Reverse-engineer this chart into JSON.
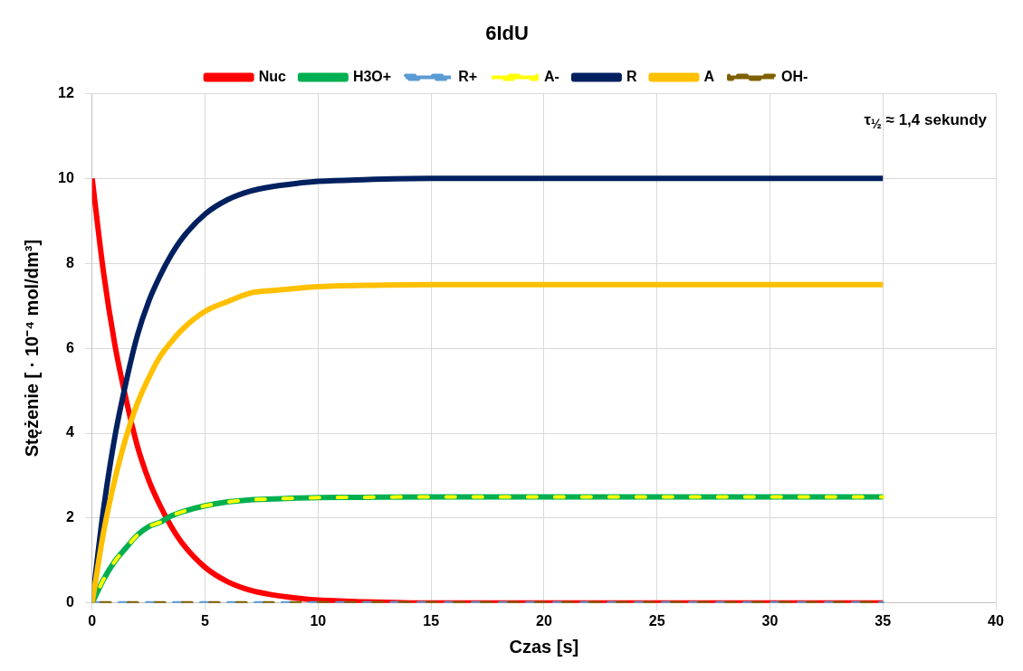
{
  "chart_data": {
    "type": "line",
    "title": "6IdU",
    "xlabel": "Czas [s]",
    "ylabel": "Stężenie [ · 10⁻⁴ mol/dm³]",
    "annotations": [
      "τ$_{½}$ ≈ 1,4 sekundy"
    ],
    "x": [
      0,
      0.5,
      1,
      1.5,
      2,
      2.5,
      3,
      3.5,
      4,
      5,
      6,
      7,
      8,
      9,
      10,
      12,
      15,
      20,
      25,
      30,
      35
    ],
    "series": [
      {
        "name": "Nuc",
        "color": "#ff0000",
        "values": [
          10,
          7.8,
          6.1,
          4.8,
          3.7,
          2.9,
          2.3,
          1.8,
          1.4,
          0.84,
          0.5,
          0.3,
          0.19,
          0.12,
          0.07,
          0.03,
          0,
          0,
          0,
          0,
          0
        ]
      },
      {
        "name": "H3O+",
        "color": "#00b050",
        "values": [
          0,
          0.55,
          0.98,
          1.3,
          1.6,
          1.8,
          1.9,
          2.05,
          2.15,
          2.29,
          2.38,
          2.43,
          2.45,
          2.47,
          2.48,
          2.49,
          2.5,
          2.5,
          2.5,
          2.5,
          2.5
        ]
      },
      {
        "name": "R+",
        "color": "#5b9bd5",
        "line_style": "dashed",
        "values": [
          0,
          0,
          0,
          0,
          0,
          0,
          0,
          0,
          0,
          0,
          0,
          0,
          0,
          0,
          0,
          0,
          0,
          0,
          0,
          0,
          0
        ]
      },
      {
        "name": "A-",
        "color": "#ffff00",
        "line_style": "dashed",
        "values": [
          0,
          0.55,
          0.98,
          1.3,
          1.6,
          1.8,
          1.9,
          2.05,
          2.15,
          2.29,
          2.38,
          2.43,
          2.45,
          2.47,
          2.48,
          2.49,
          2.5,
          2.5,
          2.5,
          2.5,
          2.5
        ]
      },
      {
        "name": "R",
        "color": "#002060",
        "values": [
          0,
          2.2,
          3.9,
          5.2,
          6.3,
          7.1,
          7.7,
          8.2,
          8.6,
          9.16,
          9.5,
          9.7,
          9.81,
          9.88,
          9.93,
          9.97,
          10,
          10,
          10,
          10,
          10
        ]
      },
      {
        "name": "A",
        "color": "#ffc000",
        "values": [
          0,
          1.65,
          2.9,
          3.9,
          4.7,
          5.3,
          5.8,
          6.15,
          6.45,
          6.87,
          7.1,
          7.3,
          7.36,
          7.41,
          7.45,
          7.48,
          7.5,
          7.5,
          7.5,
          7.5,
          7.5
        ]
      },
      {
        "name": "OH-",
        "color": "#7f6000",
        "line_style": "dashed",
        "values": [
          0,
          0,
          0,
          0,
          0,
          0,
          0,
          0,
          0,
          0,
          0,
          0,
          0,
          0,
          0,
          0,
          0,
          0,
          0,
          0,
          0
        ]
      }
    ],
    "xlim": [
      0,
      40
    ],
    "xticks": [
      0,
      5,
      10,
      15,
      20,
      25,
      30,
      35,
      40
    ],
    "ylim": [
      0,
      12
    ],
    "yticks": [
      0,
      2,
      4,
      6,
      8,
      10,
      12
    ],
    "grid": true,
    "legend": "top",
    "marker": "none",
    "line_style": "solid"
  }
}
